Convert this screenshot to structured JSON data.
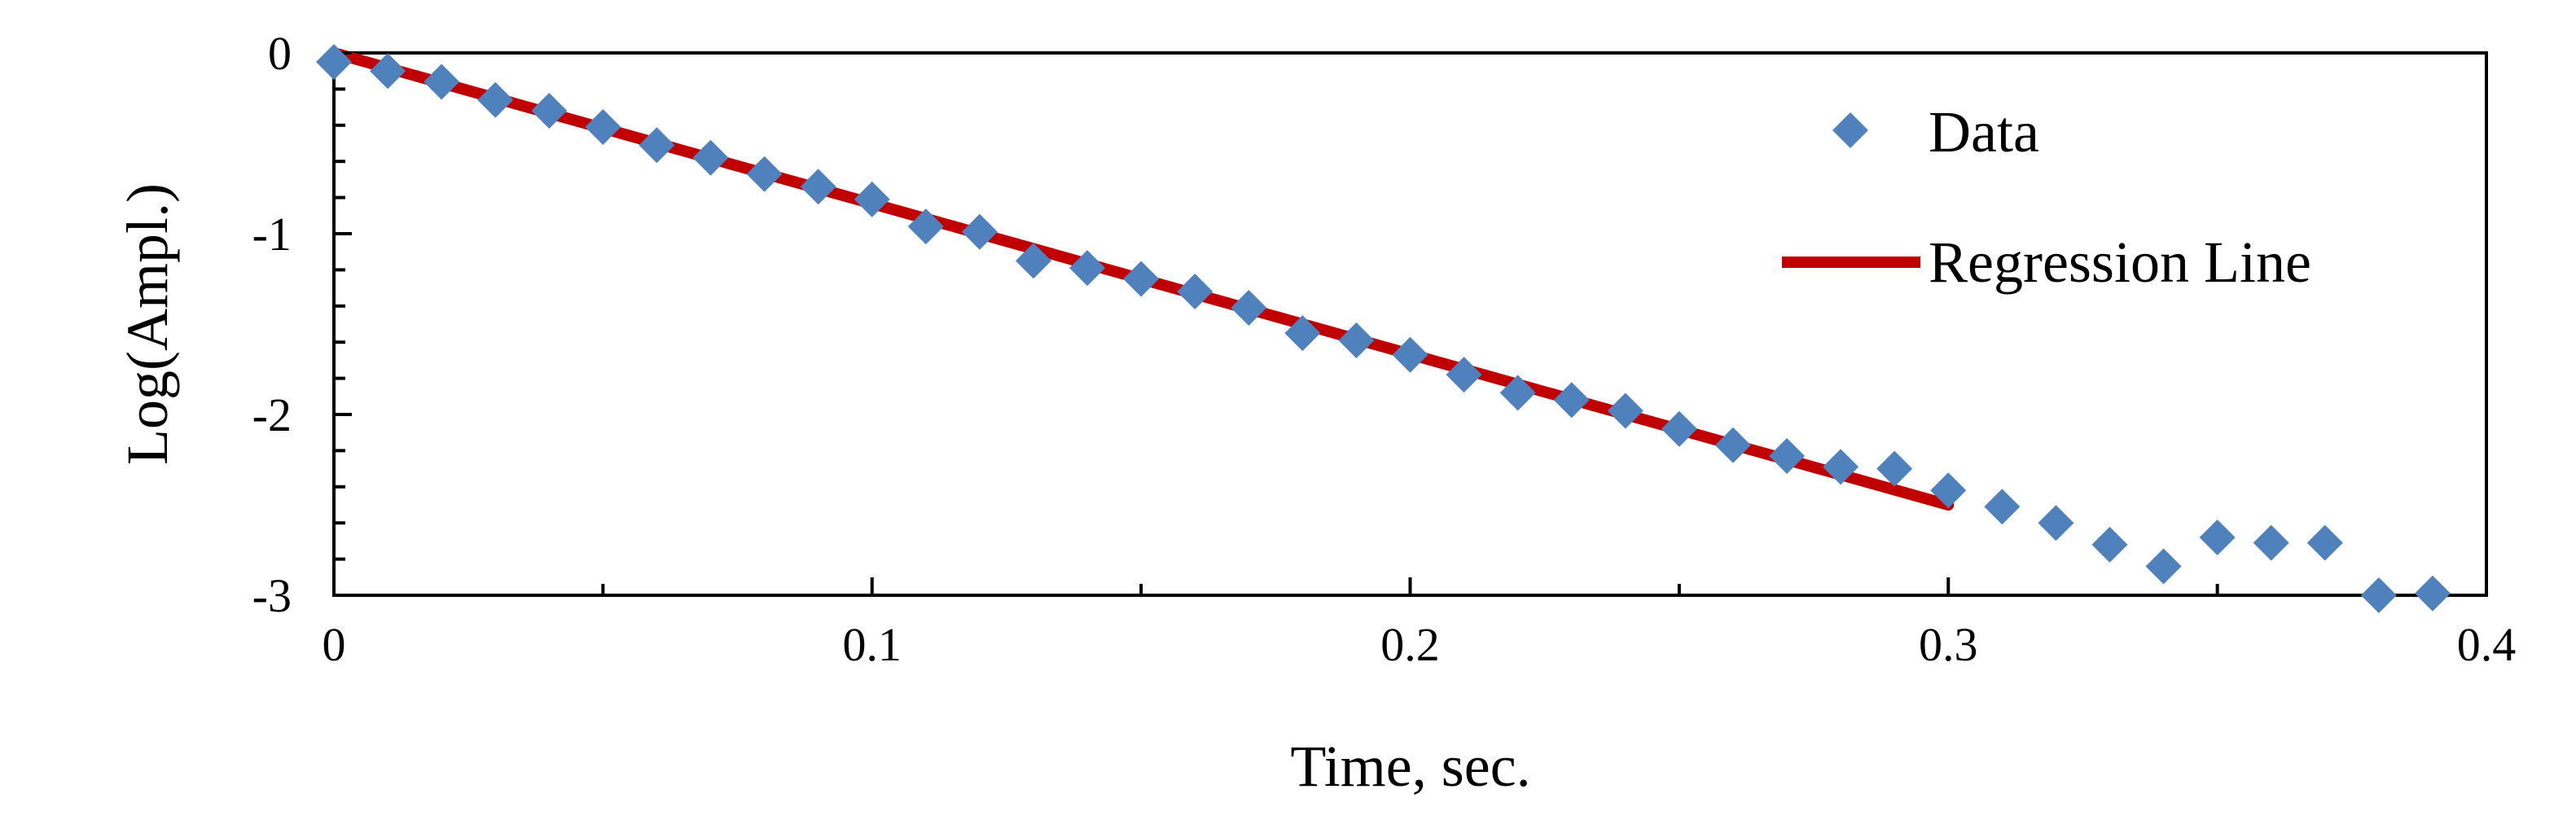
{
  "chart_data": {
    "type": "scatter",
    "xlabel": "Time, sec.",
    "ylabel": "Log(Ampl.)",
    "xlim": [
      0,
      0.4
    ],
    "ylim": [
      -3,
      0
    ],
    "x_ticks": [
      {
        "value": 0,
        "label": "0"
      },
      {
        "value": 0.1,
        "label": "0.1"
      },
      {
        "value": 0.2,
        "label": "0.2"
      },
      {
        "value": 0.3,
        "label": "0.3"
      },
      {
        "value": 0.4,
        "label": "0.4"
      }
    ],
    "y_ticks": [
      {
        "value": 0,
        "label": "0"
      },
      {
        "value": -1,
        "label": "-1"
      },
      {
        "value": -2,
        "label": "-2"
      },
      {
        "value": -3,
        "label": "-3"
      }
    ],
    "grid": false,
    "legend_position": "top-right",
    "series": [
      {
        "name": "Data",
        "kind": "scatter",
        "marker": "diamond",
        "color": "#4F81BD",
        "x": [
          0,
          0.01,
          0.02,
          0.03,
          0.04,
          0.05,
          0.06,
          0.07,
          0.08,
          0.09,
          0.1,
          0.11,
          0.12,
          0.13,
          0.14,
          0.15,
          0.16,
          0.17,
          0.18,
          0.19,
          0.2,
          0.21,
          0.22,
          0.23,
          0.24,
          0.25,
          0.26,
          0.27,
          0.28,
          0.29,
          0.3,
          0.31,
          0.32,
          0.33,
          0.34,
          0.35,
          0.36,
          0.37,
          0.38,
          0.39
        ],
        "y": [
          -0.05,
          -0.1,
          -0.16,
          -0.26,
          -0.32,
          -0.41,
          -0.51,
          -0.58,
          -0.67,
          -0.74,
          -0.81,
          -0.96,
          -0.99,
          -1.15,
          -1.19,
          -1.25,
          -1.32,
          -1.41,
          -1.55,
          -1.59,
          -1.67,
          -1.78,
          -1.88,
          -1.92,
          -1.98,
          -2.08,
          -2.17,
          -2.23,
          -2.29,
          -2.3,
          -2.42,
          -2.51,
          -2.6,
          -2.72,
          -2.84,
          -2.68,
          -2.71,
          -2.71,
          -3.0,
          -2.99
        ]
      },
      {
        "name": "Regression Line",
        "kind": "line",
        "color": "#C00000",
        "x": [
          0,
          0.3
        ],
        "y": [
          0,
          -2.5
        ]
      }
    ]
  }
}
